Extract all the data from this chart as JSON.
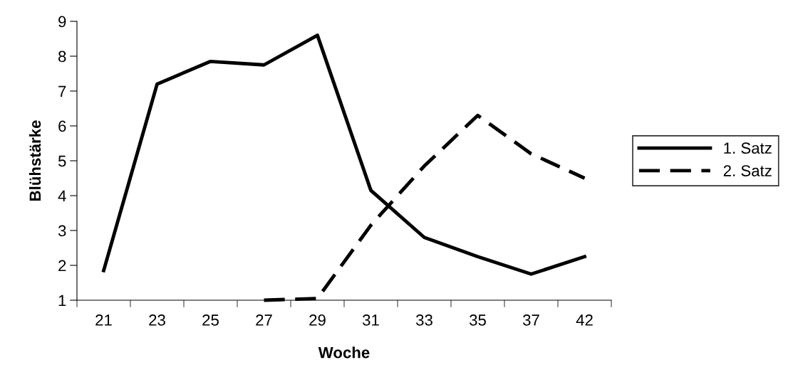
{
  "chart_data": {
    "type": "line",
    "xlabel": "Woche",
    "ylabel": "Blühstärke",
    "categories": [
      "21",
      "23",
      "25",
      "27",
      "29",
      "31",
      "33",
      "35",
      "37",
      "42"
    ],
    "series": [
      {
        "name": "1. Satz",
        "color": "#000000",
        "line_style": "solid",
        "values": [
          1.85,
          7.2,
          7.85,
          7.75,
          8.6,
          4.15,
          2.8,
          2.25,
          1.75,
          2.25
        ]
      },
      {
        "name": "2. Satz",
        "color": "#000000",
        "line_style": "dashed",
        "values": [
          null,
          null,
          null,
          1.0,
          1.05,
          3.15,
          4.85,
          6.3,
          5.2,
          4.5
        ]
      }
    ],
    "ylim": [
      1,
      9
    ],
    "yticks": [
      1,
      2,
      3,
      4,
      5,
      6,
      7,
      8,
      9
    ],
    "grid": false,
    "legend": "right",
    "marker": "none"
  }
}
